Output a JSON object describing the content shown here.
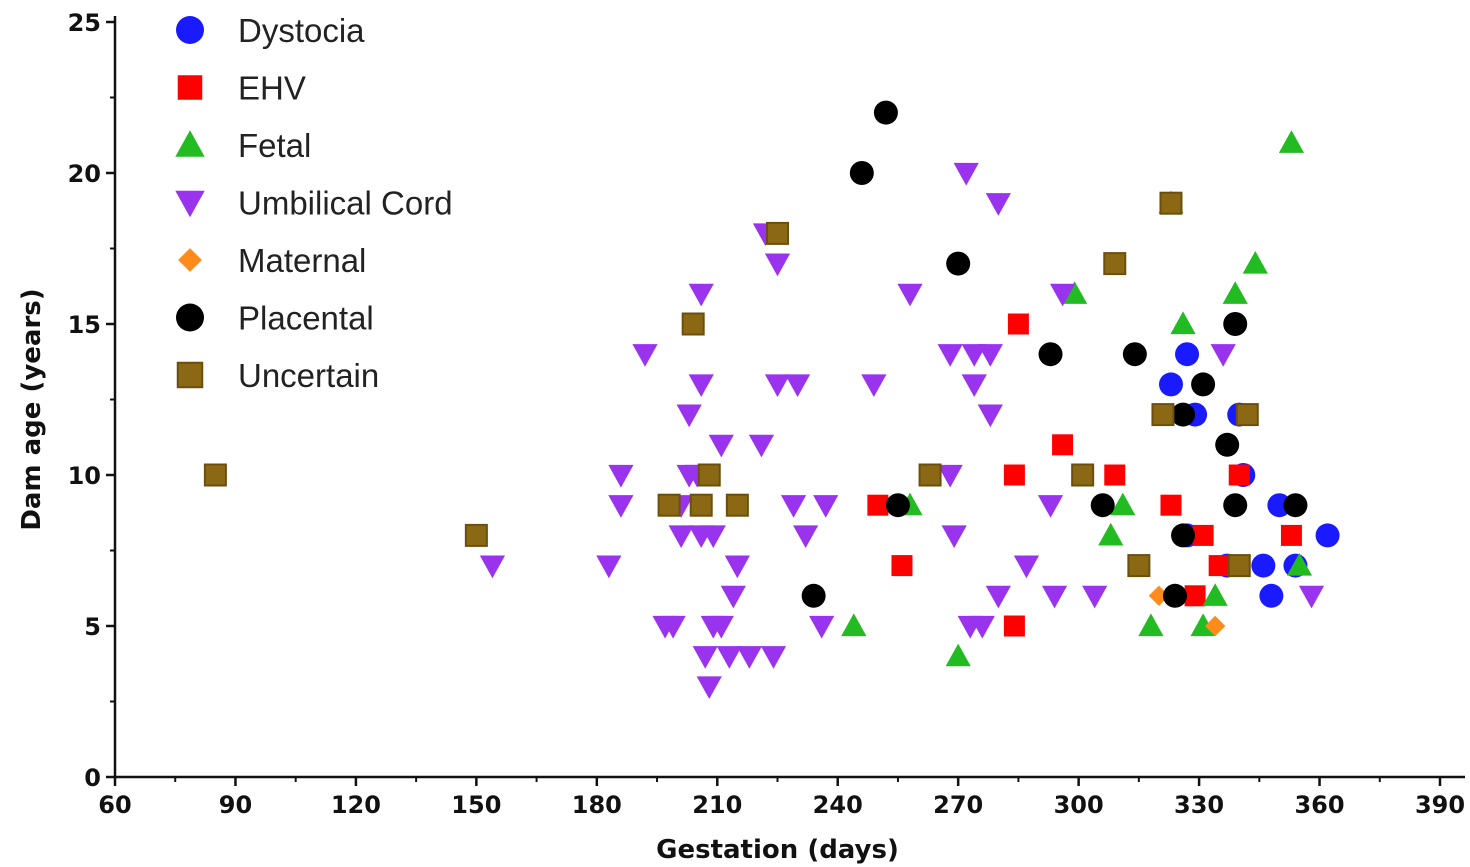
{
  "chart_data": {
    "type": "scatter",
    "title": "",
    "xlabel": "Gestation (days)",
    "ylabel": "Dam age (years)",
    "xlim": [
      60,
      390
    ],
    "ylim": [
      0,
      25
    ],
    "xticks": [
      "60",
      "90",
      "120",
      "150",
      "180",
      "210",
      "240",
      "270",
      "300",
      "330",
      "360",
      "390"
    ],
    "yticks": [
      "0",
      "5",
      "10",
      "15",
      "20",
      "25"
    ],
    "grid": false,
    "legend_position": "top-left",
    "series": [
      {
        "name": "Dystocia",
        "marker": "circle",
        "color": "#1a1aff",
        "points": [
          [
            323,
            13
          ],
          [
            327,
            14
          ],
          [
            329,
            12
          ],
          [
            340,
            12
          ],
          [
            341,
            10
          ],
          [
            327,
            8
          ],
          [
            350,
            9
          ],
          [
            346,
            7
          ],
          [
            354,
            7
          ],
          [
            362,
            8
          ],
          [
            337,
            7
          ],
          [
            348,
            6
          ]
        ]
      },
      {
        "name": "EHV",
        "marker": "square",
        "color": "#ff0000",
        "points": [
          [
            285,
            15
          ],
          [
            296,
            11
          ],
          [
            284,
            10
          ],
          [
            309,
            10
          ],
          [
            323,
            9
          ],
          [
            250,
            9
          ],
          [
            256,
            7
          ],
          [
            284,
            5
          ],
          [
            331,
            8
          ],
          [
            335,
            7
          ],
          [
            329,
            6
          ],
          [
            340,
            10
          ],
          [
            353,
            8
          ]
        ]
      },
      {
        "name": "Fetal",
        "marker": "triangle-up",
        "color": "#22bb22",
        "points": [
          [
            353,
            21
          ],
          [
            323,
            19
          ],
          [
            344,
            17
          ],
          [
            339,
            16
          ],
          [
            299,
            16
          ],
          [
            326,
            15
          ],
          [
            311,
            9
          ],
          [
            308,
            8
          ],
          [
            258,
            9
          ],
          [
            244,
            5
          ],
          [
            270,
            4
          ],
          [
            318,
            5
          ],
          [
            331,
            5
          ],
          [
            334,
            6
          ],
          [
            355,
            7
          ]
        ]
      },
      {
        "name": "Umbilical Cord",
        "marker": "triangle-down",
        "color": "#9933ee",
        "points": [
          [
            272,
            20
          ],
          [
            280,
            19
          ],
          [
            222,
            18
          ],
          [
            225,
            17
          ],
          [
            206,
            16
          ],
          [
            258,
            16
          ],
          [
            296,
            16
          ],
          [
            192,
            14
          ],
          [
            268,
            14
          ],
          [
            274,
            14
          ],
          [
            278,
            14
          ],
          [
            336,
            14
          ],
          [
            206,
            13
          ],
          [
            225,
            13
          ],
          [
            230,
            13
          ],
          [
            249,
            13
          ],
          [
            274,
            13
          ],
          [
            203,
            12
          ],
          [
            278,
            12
          ],
          [
            211,
            11
          ],
          [
            221,
            11
          ],
          [
            186,
            10
          ],
          [
            203,
            10
          ],
          [
            205,
            10
          ],
          [
            268,
            10
          ],
          [
            186,
            9
          ],
          [
            201,
            9
          ],
          [
            229,
            9
          ],
          [
            237,
            9
          ],
          [
            293,
            9
          ],
          [
            201,
            8
          ],
          [
            206,
            8
          ],
          [
            209,
            8
          ],
          [
            232,
            8
          ],
          [
            269,
            8
          ],
          [
            154,
            7
          ],
          [
            183,
            7
          ],
          [
            215,
            7
          ],
          [
            287,
            7
          ],
          [
            214,
            6
          ],
          [
            280,
            6
          ],
          [
            294,
            6
          ],
          [
            304,
            6
          ],
          [
            358,
            6
          ],
          [
            197,
            5
          ],
          [
            199,
            5
          ],
          [
            209,
            5
          ],
          [
            211,
            5
          ],
          [
            236,
            5
          ],
          [
            273,
            5
          ],
          [
            276,
            5
          ],
          [
            207,
            4
          ],
          [
            213,
            4
          ],
          [
            218,
            4
          ],
          [
            224,
            4
          ],
          [
            208,
            3
          ]
        ]
      },
      {
        "name": "Maternal",
        "marker": "diamond",
        "color": "#ff8c1a",
        "points": [
          [
            320,
            6
          ],
          [
            334,
            5
          ]
        ]
      },
      {
        "name": "Placental",
        "marker": "circle",
        "color": "#000000",
        "points": [
          [
            252,
            22
          ],
          [
            246,
            20
          ],
          [
            270,
            17
          ],
          [
            339,
            15
          ],
          [
            293,
            14
          ],
          [
            314,
            14
          ],
          [
            331,
            13
          ],
          [
            326,
            12
          ],
          [
            337,
            11
          ],
          [
            255,
            9
          ],
          [
            306,
            9
          ],
          [
            339,
            9
          ],
          [
            354,
            9
          ],
          [
            326,
            8
          ],
          [
            234,
            6
          ],
          [
            324,
            6
          ]
        ]
      },
      {
        "name": "Uncertain",
        "marker": "square",
        "color": "#8b6914",
        "points": [
          [
            85,
            10
          ],
          [
            150,
            8
          ],
          [
            225,
            18
          ],
          [
            204,
            15
          ],
          [
            323,
            19
          ],
          [
            309,
            17
          ],
          [
            321,
            12
          ],
          [
            342,
            12
          ],
          [
            208,
            10
          ],
          [
            263,
            10
          ],
          [
            301,
            10
          ],
          [
            198,
            9
          ],
          [
            206,
            9
          ],
          [
            215,
            9
          ],
          [
            315,
            7
          ],
          [
            340,
            7
          ]
        ]
      }
    ]
  }
}
